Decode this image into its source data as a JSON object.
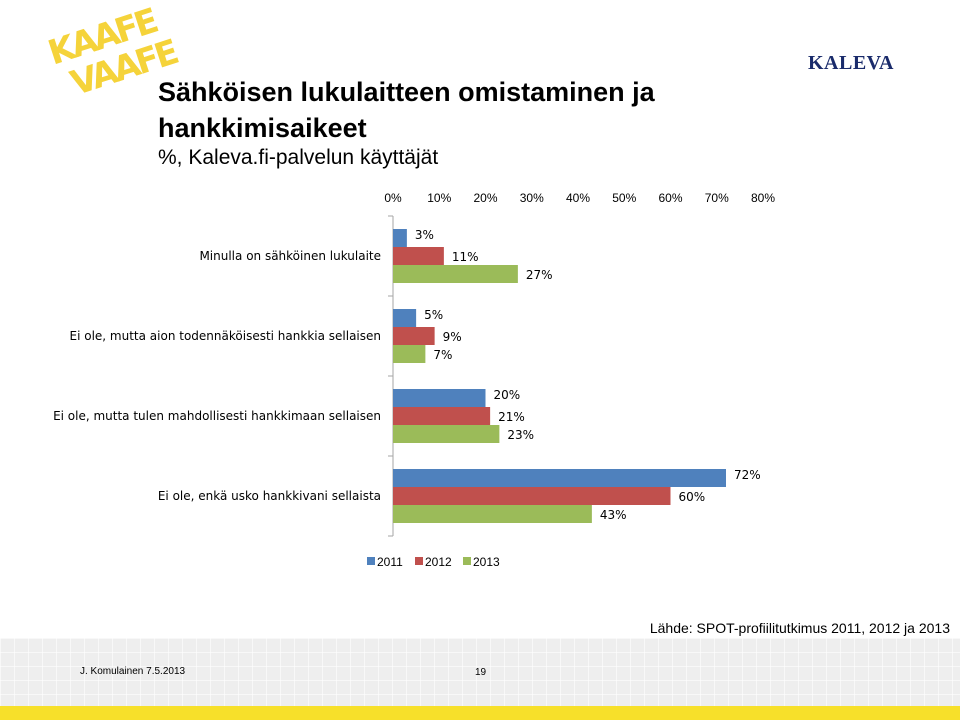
{
  "logo": {
    "text": "KAAFE VAAFE",
    "color": "#f5d33a"
  },
  "brand": {
    "name": "KALEVA"
  },
  "title": "Sähköisen lukulaitteen omistaminen ja hankkimisaikeet",
  "subtitle": "%, Kaleva.fi-palvelun käyttäjät",
  "colors": {
    "s2011": "#4f81bd",
    "s2012": "#c0504d",
    "s2013": "#9bbb59"
  },
  "chart_data": {
    "type": "bar",
    "orientation": "horizontal",
    "categories": [
      "Minulla on sähköinen lukulaite",
      "Ei ole, mutta aion todennäköisesti hankkia sellaisen",
      "Ei ole, mutta tulen mahdollisesti hankkimaan sellaisen",
      "Ei ole, enkä usko hankkivani sellaista"
    ],
    "series": [
      {
        "name": "2011",
        "values": [
          3,
          5,
          20,
          72
        ]
      },
      {
        "name": "2012",
        "values": [
          11,
          9,
          21,
          60
        ]
      },
      {
        "name": "2013",
        "values": [
          27,
          7,
          23,
          43
        ]
      }
    ],
    "xlim": [
      0,
      80
    ],
    "xticks": [
      "0%",
      "10%",
      "20%",
      "30%",
      "40%",
      "50%",
      "60%",
      "70%",
      "80%"
    ],
    "unit": "%",
    "axis_position": "top",
    "legend": "bottom",
    "grid": false
  },
  "source": "Lähde: SPOT-profiilitutkimus 2011, 2012 ja 2013",
  "footer": {
    "author": "J. Komulainen 7.5.2013",
    "page": "19"
  }
}
